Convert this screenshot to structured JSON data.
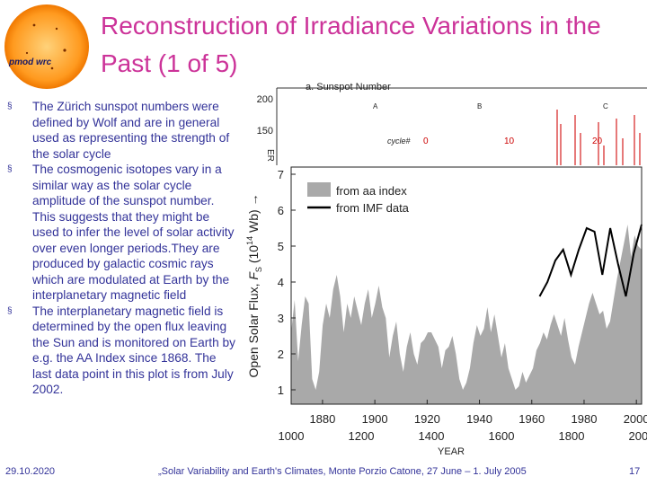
{
  "slide": {
    "title": "Reconstruction of Irradiance Variations in the Past (1 of 5)",
    "title_color": "#cc3399",
    "text_color": "#333399",
    "logo": {
      "icon": "sun-icon",
      "text": "pmod wrc"
    },
    "bullets": [
      "The Zürich sunspot numbers were defined by Wolf and are in general used as representing the strength of the solar cycle",
      "The cosmogenic isotopes vary in a similar way as the solar cycle amplitude of the sunspot number. This suggests that they might be used to infer the level of solar activity over even longer periods.They are produced by galactic cosmic rays which are modulated at Earth by the interplanetary magnetic field",
      "The interplanetary magnetic field is determined by the open flux leaving the Sun and is monitored on Earth by e.g. the AA Index since 1868. The last data point in this plot  is from July 2002."
    ],
    "bullet_marker": "§",
    "footer": {
      "date": "29.10.2020",
      "conference": "„Solar Variability and Earth's Climates, Monte Porzio Catone, 27 June – 1. July 2005",
      "page": "17"
    }
  },
  "chart_data": [
    {
      "type": "line",
      "title": "a. Sunspot Number",
      "y_ticks": [
        "200",
        "150"
      ],
      "y_axis_partial_label": "ER",
      "cycle_labels": {
        "prefix": "cycle#",
        "values": [
          "0",
          "10",
          "20"
        ]
      },
      "segment_labels": [
        "A",
        "B",
        "C"
      ],
      "note": "partially covered by the open solar flux chart"
    },
    {
      "type": "area",
      "title": "",
      "ylabel": "Open Solar Flux, Fs (10^14 Wb) →",
      "ylabel_main": "Open Solar Flux, ",
      "ylabel_var": "F",
      "ylabel_sub": "S",
      "ylabel_unit": " (10",
      "ylabel_exp": "14",
      "ylabel_end": " Wb)  →",
      "xlabel": "YEAR",
      "ylim": [
        0.6,
        7.2
      ],
      "y_ticks": [
        1,
        2,
        3,
        4,
        5,
        6,
        7
      ],
      "x_ticks_top": [
        "1880",
        "1900",
        "1920",
        "1940",
        "1960",
        "1980",
        "2000"
      ],
      "x_ticks_bottom": [
        "1000",
        "1200",
        "1400",
        "1600",
        "1800",
        "2000"
      ],
      "xlim_bottom": [
        1000,
        2000
      ],
      "xlim_top": [
        1868,
        2002
      ],
      "legend": [
        "from aa index",
        "from IMF data"
      ],
      "series": [
        {
          "name": "from aa index",
          "axis": "bottom",
          "color": "#a9a9a9",
          "x": [
            1000,
            1010,
            1020,
            1030,
            1040,
            1050,
            1060,
            1070,
            1080,
            1090,
            1100,
            1110,
            1120,
            1130,
            1140,
            1150,
            1160,
            1170,
            1180,
            1190,
            1200,
            1210,
            1220,
            1230,
            1240,
            1250,
            1260,
            1270,
            1280,
            1290,
            1300,
            1310,
            1320,
            1330,
            1340,
            1350,
            1360,
            1370,
            1380,
            1390,
            1400,
            1410,
            1420,
            1430,
            1440,
            1450,
            1460,
            1470,
            1480,
            1490,
            1500,
            1510,
            1520,
            1530,
            1540,
            1550,
            1560,
            1570,
            1580,
            1590,
            1600,
            1610,
            1620,
            1630,
            1640,
            1650,
            1660,
            1670,
            1680,
            1690,
            1700,
            1710,
            1720,
            1730,
            1740,
            1750,
            1760,
            1770,
            1780,
            1790,
            1800,
            1810,
            1820,
            1830,
            1840,
            1850,
            1860,
            1870,
            1880,
            1890,
            1900,
            1910,
            1920,
            1930,
            1940,
            1950,
            1960,
            1970,
            1980,
            1990,
            2000
          ],
          "values": [
            2.6,
            3.5,
            1.8,
            2.8,
            3.6,
            3.4,
            1.3,
            1.0,
            1.5,
            2.8,
            3.4,
            3.0,
            3.8,
            4.2,
            3.6,
            2.6,
            3.4,
            3.0,
            3.6,
            3.2,
            2.8,
            3.4,
            3.8,
            3.0,
            3.4,
            3.9,
            3.3,
            3.0,
            1.9,
            2.5,
            2.9,
            2.0,
            1.5,
            2.2,
            2.6,
            2.0,
            1.7,
            2.3,
            2.4,
            2.6,
            2.6,
            2.4,
            2.2,
            1.6,
            2.1,
            2.2,
            2.5,
            2.0,
            1.3,
            1.0,
            1.2,
            1.6,
            2.3,
            2.8,
            2.5,
            2.7,
            3.3,
            2.6,
            3.1,
            2.5,
            1.9,
            2.3,
            1.6,
            1.3,
            1.0,
            1.1,
            1.5,
            1.2,
            1.4,
            1.6,
            2.1,
            2.3,
            2.6,
            2.4,
            2.8,
            3.1,
            2.8,
            2.5,
            3.0,
            2.4,
            1.9,
            1.7,
            2.2,
            2.6,
            3.0,
            3.4,
            3.7,
            3.4,
            3.1,
            3.2,
            2.7,
            2.9,
            3.5,
            4.1,
            4.6,
            5.1,
            5.6,
            4.7,
            5.3,
            5.0,
            4.9
          ]
        },
        {
          "name": "from IMF data",
          "axis": "top",
          "color": "#000000",
          "x": [
            1963,
            1966,
            1969,
            1972,
            1975,
            1978,
            1981,
            1984,
            1987,
            1990,
            1993,
            1996,
            1999,
            2002
          ],
          "values": [
            3.6,
            4.0,
            4.6,
            4.9,
            4.2,
            4.9,
            5.5,
            5.4,
            4.2,
            5.5,
            4.5,
            3.6,
            4.8,
            5.6
          ]
        }
      ]
    }
  ]
}
